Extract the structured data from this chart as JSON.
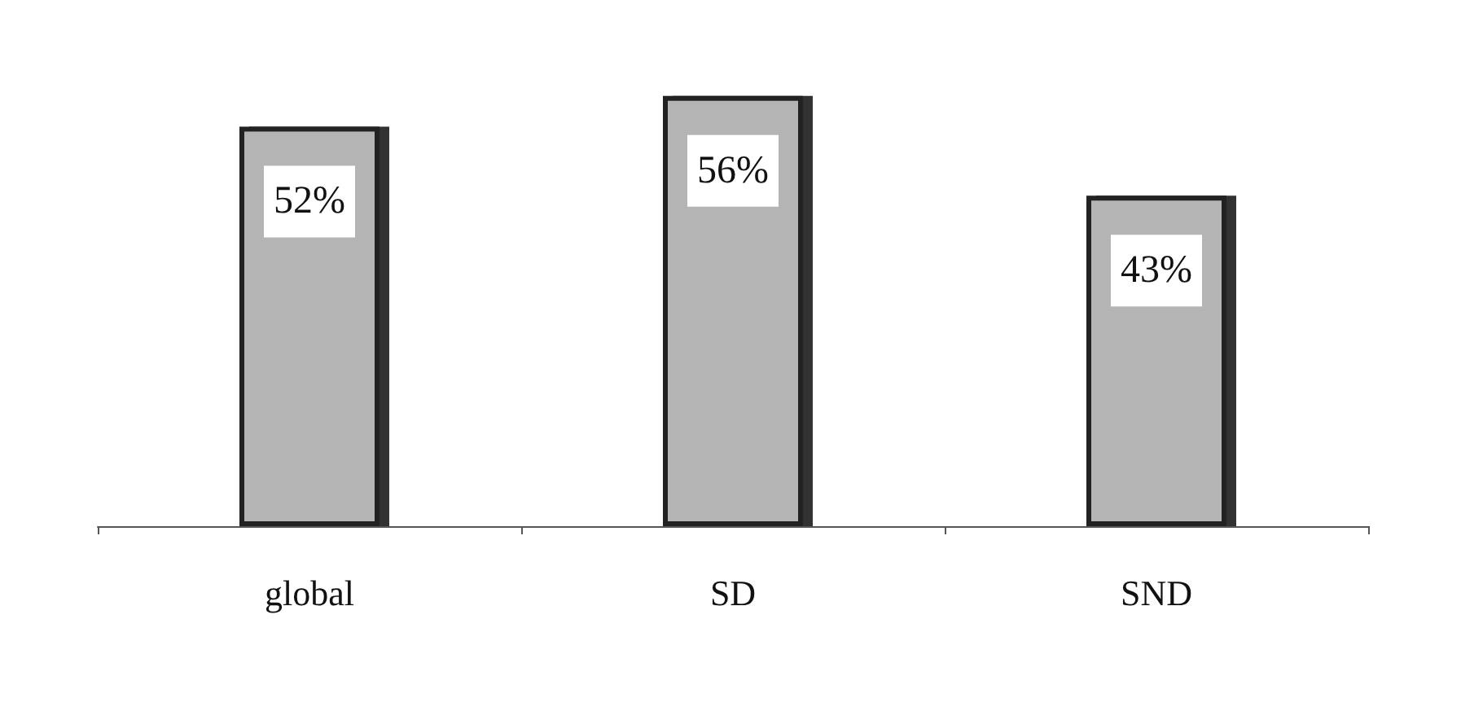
{
  "chart_data": {
    "type": "bar",
    "categories": [
      "global",
      "SD",
      "SND"
    ],
    "values": [
      52,
      56,
      43
    ],
    "value_labels": [
      "52%",
      "56%",
      "43%"
    ],
    "color": "#b4b4b4"
  }
}
